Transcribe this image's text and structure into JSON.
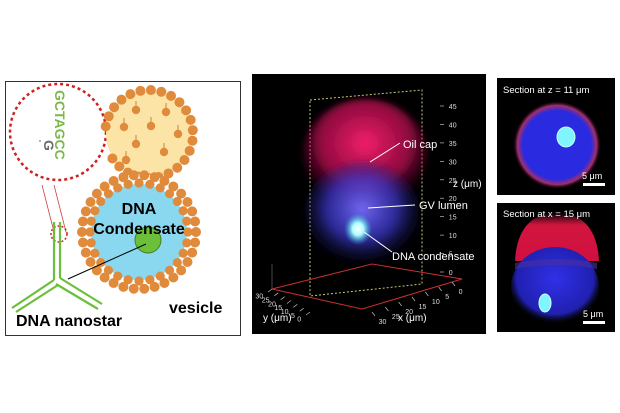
{
  "schematic": {
    "dna_sequence": "GCTAGCC",
    "sequence_tail": "G",
    "condensate_line1": "DNA",
    "condensate_line2": "Condensate",
    "vesicle_label": "vesicle",
    "nanostar_label": "DNA nanostar"
  },
  "render3d": {
    "oil_cap_label": "Oil cap",
    "gv_lumen_label": "GV lumen",
    "dna_condensate_label": "DNA condensate",
    "z_axis_label": "z (μm)",
    "y_axis_label": "y (μm)",
    "x_axis_label": "x (μm)",
    "z_ticks": [
      "45",
      "40",
      "35",
      "30",
      "25",
      "20",
      "15",
      "10",
      "5",
      "0"
    ],
    "y_ticks": [
      "30",
      "25",
      "20",
      "15",
      "10",
      "5",
      "0"
    ],
    "x_ticks": [
      "30",
      "25",
      "20",
      "15",
      "10",
      "5",
      "0"
    ]
  },
  "section_z": {
    "title": "Section at z = 11 μm",
    "scalebar": "5 μm"
  },
  "section_x": {
    "title": "Section at x = 15 μm",
    "scalebar": "5 μm"
  },
  "colors": {
    "lipid_head": "#e08a3c",
    "condensate_fill": "#8ad8f0",
    "oil_cap_fill": "#fce3a6",
    "dna_green": "#6cbf3a",
    "oil_cap_red": "#e8185a",
    "lumen_blue": "#3a3ad8",
    "condensate_cyan": "#7ff6ff"
  }
}
